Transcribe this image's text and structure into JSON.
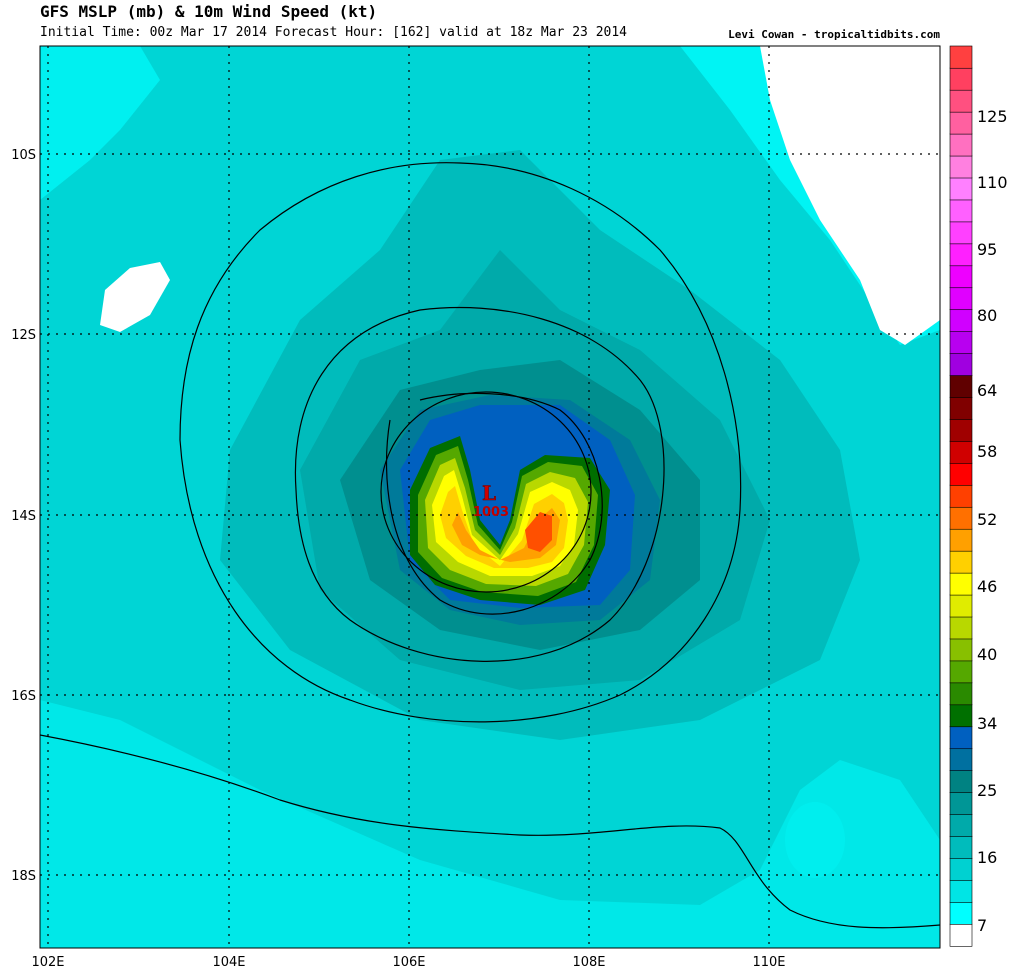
{
  "header": {
    "title": "GFS MSLP (mb) & 10m Wind Speed (kt)",
    "subtitle": "Initial Time: 00z Mar 17 2014 Forecast Hour: [162] valid at 18z Mar 23 2014",
    "credit": "Levi Cowan - tropicaltidbits.com"
  },
  "map": {
    "lon_labels": [
      "102E",
      "104E",
      "106E",
      "108E",
      "110E"
    ],
    "lat_labels": [
      "10S",
      "12S",
      "14S",
      "16S",
      "18S"
    ],
    "low_marker": {
      "symbol": "L",
      "pressure": "1003"
    }
  },
  "colorbar": {
    "labels": [
      "125",
      "110",
      "95",
      "80",
      "64",
      "58",
      "52",
      "46",
      "40",
      "34",
      "25",
      "16",
      "7"
    ],
    "colors": [
      "#ffffff",
      "#00ffff",
      "#00e5e5",
      "#00d1d1",
      "#00bcbc",
      "#00aaaa",
      "#009696",
      "#008282",
      "#0070a0",
      "#0060c0",
      "#007000",
      "#2a8a00",
      "#55a800",
      "#88c000",
      "#b8d800",
      "#e0ec00",
      "#ffff00",
      "#ffd000",
      "#ffa000",
      "#ff7000",
      "#ff4000",
      "#ff0000",
      "#d00000",
      "#a00000",
      "#800000",
      "#600000",
      "#a000e0",
      "#b800f0",
      "#d000ff",
      "#e000ff",
      "#ee00ff",
      "#ff20ff",
      "#ff40ff",
      "#ff60ff",
      "#ff80ff",
      "#ff80e0",
      "#ff70c0",
      "#ff60a0",
      "#ff5080",
      "#ff4060",
      "#ff4040"
    ],
    "accent_low": "#d00000"
  }
}
